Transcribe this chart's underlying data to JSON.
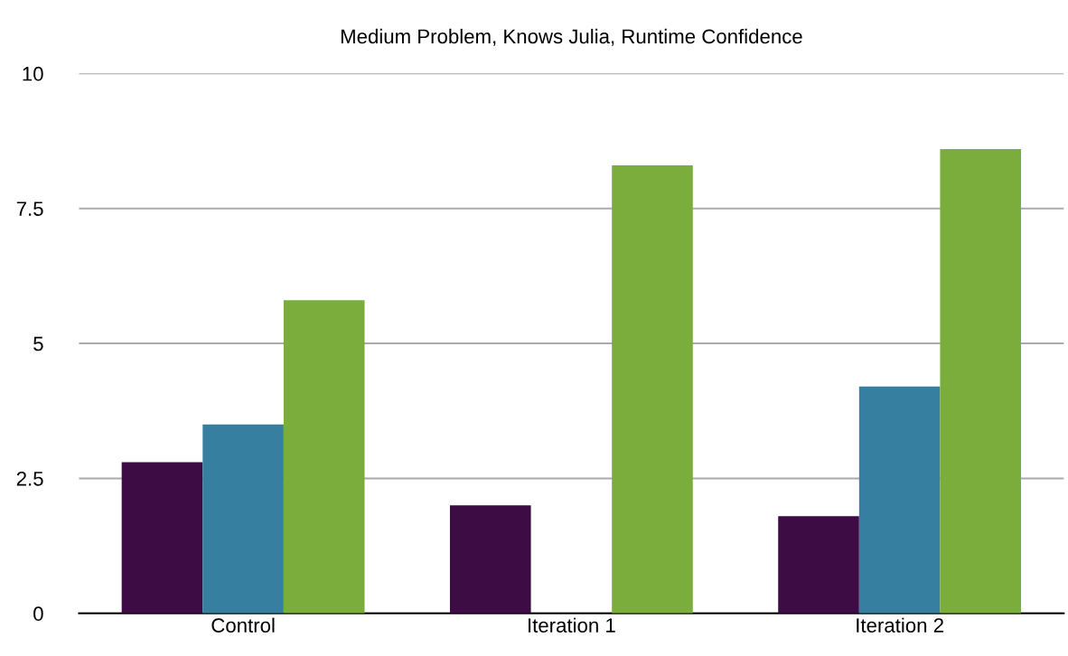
{
  "chart_data": {
    "type": "bar",
    "title": "Medium Problem, Knows Julia, Runtime Confidence",
    "categories": [
      "Control",
      "Iteration 1",
      "Iteration 2"
    ],
    "series": [
      {
        "color": "#3d0c45",
        "values": [
          2.8,
          2.0,
          1.8
        ]
      },
      {
        "color": "#377fa0",
        "values": [
          3.5,
          null,
          4.2
        ]
      },
      {
        "color": "#7aad3c",
        "values": [
          5.8,
          8.3,
          8.6
        ]
      }
    ],
    "ylim": [
      0,
      10
    ],
    "yticks": [
      0,
      {
        "value": 2.5,
        "label": "2.5"
      },
      5,
      {
        "value": 7.5,
        "label": "7.5"
      },
      10
    ],
    "grid": "y",
    "legend": false
  }
}
